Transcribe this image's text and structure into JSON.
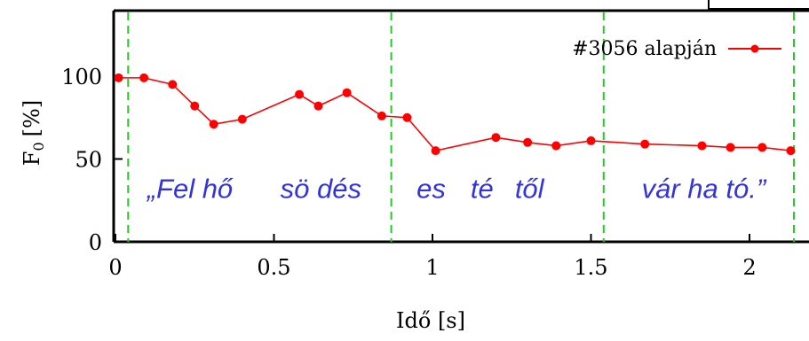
{
  "chart_data": {
    "type": "line",
    "xlabel": "Idő [s]",
    "ylabel_main": "F",
    "ylabel_sub": "0",
    "ylabel_unit": "[%]",
    "xlim": [
      0,
      2.2
    ],
    "ylim": [
      0,
      140
    ],
    "x_ticks": [
      0,
      0.5,
      1,
      1.5,
      2
    ],
    "x_tick_labels": [
      "0",
      "0.5",
      "1",
      "1.5",
      "2"
    ],
    "y_ticks": [
      0,
      50,
      100
    ],
    "y_tick_labels": [
      "0",
      "50",
      "100"
    ],
    "grid": false,
    "legend_position": "top-right",
    "series": [
      {
        "name": "#3056 alapján",
        "color": "#ff0000",
        "points": [
          {
            "x": 0.01,
            "y": 99
          },
          {
            "x": 0.09,
            "y": 99
          },
          {
            "x": 0.18,
            "y": 95
          },
          {
            "x": 0.25,
            "y": 82
          },
          {
            "x": 0.31,
            "y": 71
          },
          {
            "x": 0.4,
            "y": 74
          },
          {
            "x": 0.58,
            "y": 89
          },
          {
            "x": 0.64,
            "y": 82
          },
          {
            "x": 0.73,
            "y": 90
          },
          {
            "x": 0.84,
            "y": 76
          },
          {
            "x": 0.92,
            "y": 75
          },
          {
            "x": 1.01,
            "y": 55
          },
          {
            "x": 1.2,
            "y": 63
          },
          {
            "x": 1.3,
            "y": 60
          },
          {
            "x": 1.39,
            "y": 58
          },
          {
            "x": 1.5,
            "y": 61
          },
          {
            "x": 1.67,
            "y": 59
          },
          {
            "x": 1.85,
            "y": 58
          },
          {
            "x": 1.94,
            "y": 57
          },
          {
            "x": 2.04,
            "y": 57
          },
          {
            "x": 2.13,
            "y": 55
          }
        ]
      }
    ],
    "boundaries": [
      0.04,
      0.87,
      1.54,
      2.14
    ],
    "boundary_color": "#22cc22",
    "annotation_color": "#3333dd"
  },
  "annotations": {
    "syllables": [
      {
        "x": 0.1,
        "text": "„Fel hő"
      },
      {
        "x": 0.52,
        "text": "sö dés"
      },
      {
        "x": 0.95,
        "text": "es"
      },
      {
        "x": 1.12,
        "text": "té"
      },
      {
        "x": 1.26,
        "text": "től"
      },
      {
        "x": 1.66,
        "text": "vár ha tó.”"
      }
    ],
    "syllable_y": 50
  }
}
